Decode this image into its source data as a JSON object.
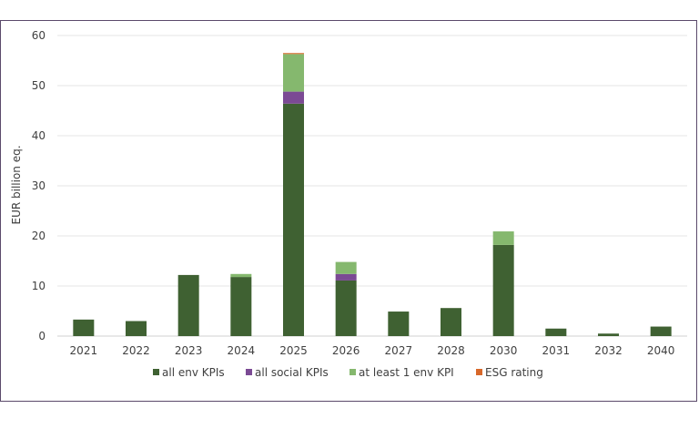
{
  "chart_data": {
    "type": "bar",
    "stacked": true,
    "title": "",
    "xlabel": "",
    "ylabel": "EUR billion eq.",
    "ylim": [
      0,
      60
    ],
    "yticks": [
      0,
      10,
      20,
      30,
      40,
      50,
      60
    ],
    "grid": true,
    "legend_position": "bottom",
    "categories": [
      "2021",
      "2022",
      "2023",
      "2024",
      "2025",
      "2026",
      "2027",
      "2028",
      "2030",
      "2031",
      "2032",
      "2040"
    ],
    "series": [
      {
        "name": "all env KPIs",
        "color": "#3f6132",
        "values": [
          3.3,
          3.0,
          12.2,
          11.8,
          46.4,
          11.1,
          4.9,
          5.6,
          18.2,
          1.5,
          0.5,
          1.9
        ]
      },
      {
        "name": "all social KPIs",
        "color": "#7b4a94",
        "values": [
          0,
          0,
          0,
          0,
          2.4,
          1.3,
          0,
          0,
          0,
          0,
          0,
          0
        ]
      },
      {
        "name": "at least 1 env KPI",
        "color": "#85b86e",
        "values": [
          0,
          0,
          0,
          0.6,
          7.5,
          2.4,
          0,
          0,
          2.7,
          0,
          0,
          0
        ]
      },
      {
        "name": "ESG rating",
        "color": "#d8682a",
        "values": [
          0,
          0,
          0,
          0,
          0.2,
          0,
          0,
          0,
          0,
          0,
          0,
          0
        ]
      }
    ]
  }
}
